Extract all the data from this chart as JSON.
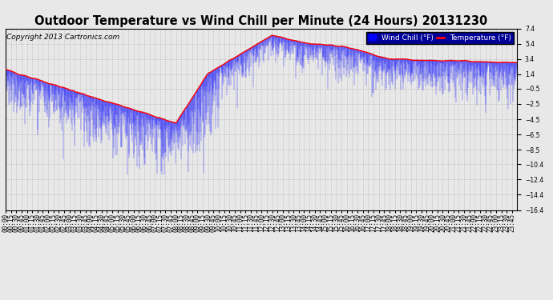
{
  "title": "Outdoor Temperature vs Wind Chill per Minute (24 Hours) 20131230",
  "copyright": "Copyright 2013 Cartronics.com",
  "legend_labels": [
    "Wind Chill (°F)",
    "Temperature (°F)"
  ],
  "wind_chill_color": "#0000ff",
  "temp_color": "#ff0000",
  "bg_color": "#e8e8e8",
  "grid_color": "#aaaaaa",
  "ylim": [
    -16.4,
    7.4
  ],
  "yticks": [
    7.4,
    5.4,
    3.4,
    1.4,
    -0.5,
    -2.5,
    -4.5,
    -6.5,
    -8.5,
    -10.4,
    -12.4,
    -14.4,
    -16.4
  ],
  "title_fontsize": 10.5,
  "tick_fontsize": 5.5,
  "copyright_fontsize": 6.5,
  "legend_bg": "#000099",
  "legend_fontsize": 6.5
}
